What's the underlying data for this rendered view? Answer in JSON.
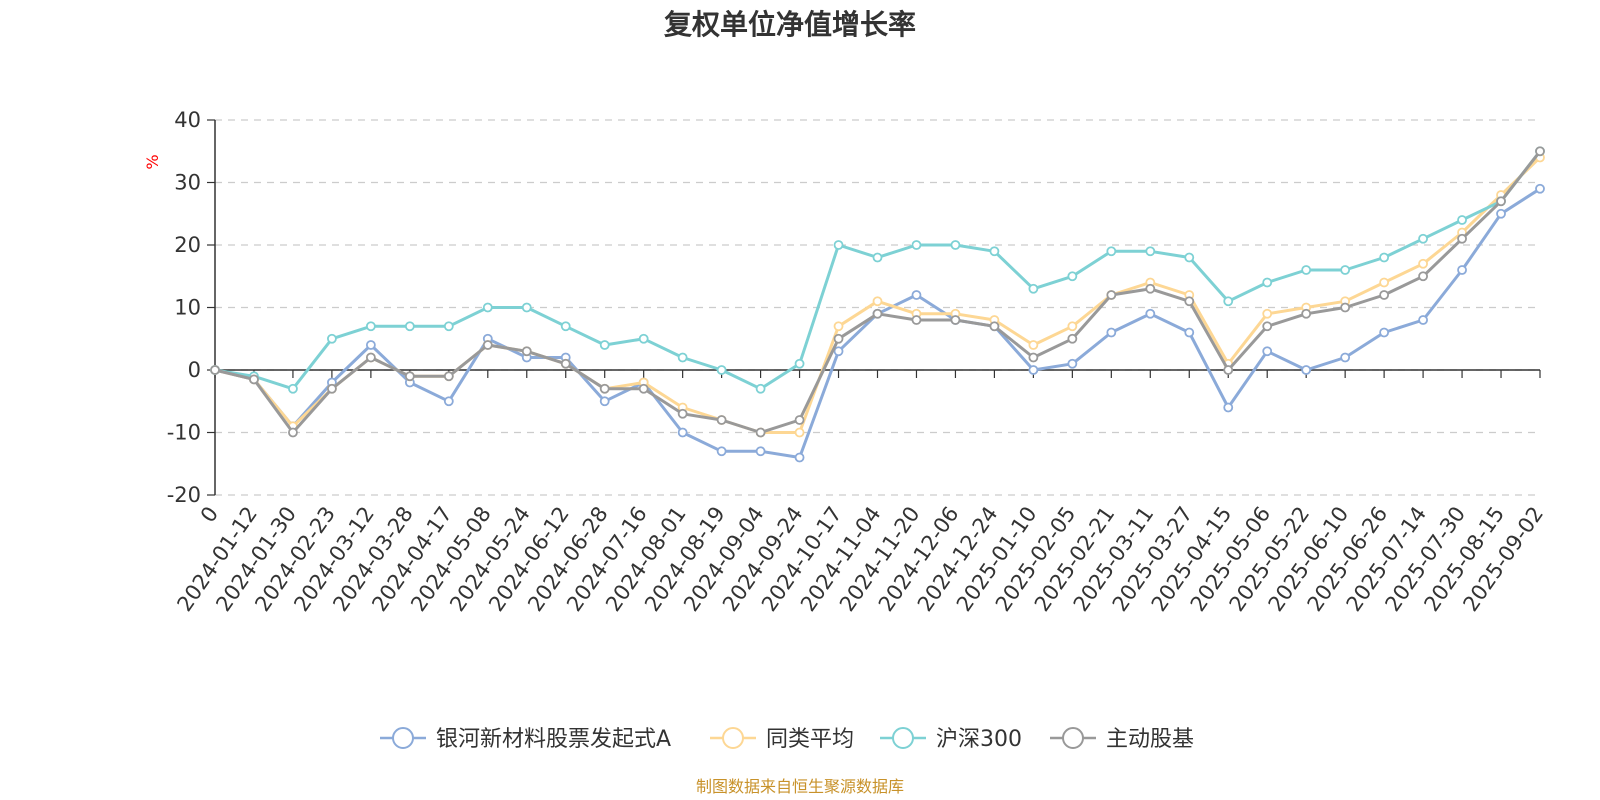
{
  "chart_data": {
    "type": "line",
    "title": "复权单位净值增长率",
    "ylabel": "%",
    "xlabel": "",
    "ylim": [
      -20,
      40
    ],
    "yticks": [
      -20,
      -10,
      0,
      10,
      20,
      30,
      40
    ],
    "grid": true,
    "legend_position": "bottom",
    "source": "制图数据来自恒生聚源数据库",
    "x": [
      "0",
      "2024-01-12",
      "2024-01-30",
      "2024-02-23",
      "2024-03-12",
      "2024-03-28",
      "2024-04-17",
      "2024-05-08",
      "2024-05-24",
      "2024-06-12",
      "2024-06-28",
      "2024-07-16",
      "2024-08-01",
      "2024-08-19",
      "2024-09-04",
      "2024-09-24",
      "2024-10-17",
      "2024-11-04",
      "2024-11-20",
      "2024-12-06",
      "2024-12-24",
      "2025-01-10",
      "2025-02-05",
      "2025-02-21",
      "2025-03-11",
      "2025-03-27",
      "2025-04-15",
      "2025-05-06",
      "2025-05-22",
      "2025-06-10",
      "2025-06-26",
      "2025-07-14",
      "2025-07-30",
      "2025-08-15",
      "2025-09-02"
    ],
    "series": [
      {
        "name": "银河新材料股票发起式A",
        "color": "#8baad9",
        "values": [
          0,
          -1.5,
          -9,
          -2,
          4,
          -2,
          -5,
          5,
          2,
          2,
          -5,
          -2,
          -10,
          -13,
          -13,
          -14,
          3,
          9,
          12,
          8,
          7,
          0,
          1,
          6,
          9,
          6,
          -6,
          3,
          0,
          2,
          6,
          8,
          16,
          25,
          29
        ]
      },
      {
        "name": "同类平均",
        "color": "#fdd794",
        "values": [
          0,
          -1.5,
          -9,
          -3,
          2,
          -1,
          -1,
          4,
          3,
          1,
          -3,
          -2,
          -6,
          -8,
          -10,
          -10,
          7,
          11,
          9,
          9,
          8,
          4,
          7,
          12,
          14,
          12,
          1,
          9,
          10,
          11,
          14,
          17,
          22,
          28,
          34
        ]
      },
      {
        "name": "沪深300",
        "color": "#7dd1d4",
        "values": [
          0,
          -1,
          -3,
          5,
          7,
          7,
          7,
          10,
          10,
          7,
          4,
          5,
          2,
          0,
          -3,
          1,
          20,
          18,
          20,
          20,
          19,
          13,
          15,
          19,
          19,
          18,
          11,
          14,
          16,
          16,
          18,
          21,
          24,
          27,
          35
        ]
      },
      {
        "name": "主动股基",
        "color": "#999999",
        "values": [
          0,
          -1.5,
          -10,
          -3,
          2,
          -1,
          -1,
          4,
          3,
          1,
          -3,
          -3,
          -7,
          -8,
          -10,
          -8,
          5,
          9,
          8,
          8,
          7,
          2,
          5,
          12,
          13,
          11,
          0,
          7,
          9,
          10,
          12,
          15,
          21,
          27,
          35
        ]
      }
    ]
  }
}
